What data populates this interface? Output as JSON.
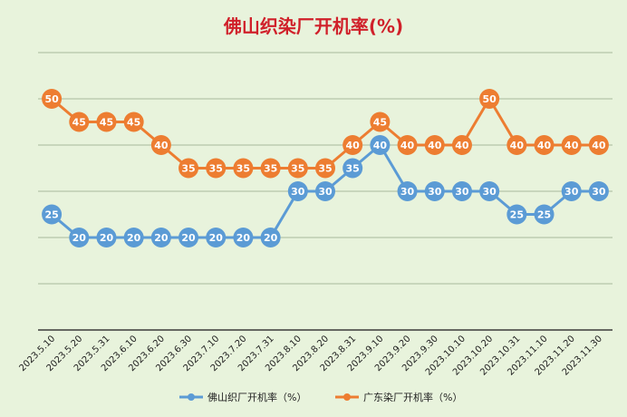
{
  "colors": {
    "background": "#e8f3dc",
    "title": "#d0202a",
    "series_foshan": "#5b9bd5",
    "series_guangdong": "#ed7d31",
    "grid": "#a9b89c",
    "axis": "#3a3a3a"
  },
  "chart_data": {
    "type": "line",
    "title": "佛山织染厂开机率(%)",
    "xlabel": "",
    "ylabel": "",
    "ylim": [
      0,
      60
    ],
    "yticks": [
      0,
      10,
      20,
      30,
      40,
      50,
      60
    ],
    "grid": true,
    "legend_position": "bottom",
    "categories": [
      "2023.5.10",
      "2023.5.20",
      "2023.5.31",
      "2023.6.10",
      "2023.6.20",
      "2023.6.30",
      "2023.7.10",
      "2023.7.20",
      "2023.7.31",
      "2023.8.10",
      "2023.8.20",
      "2023.8.31",
      "2023.9.10",
      "2023.9.20",
      "2023.9.30",
      "2023.10.10",
      "2023.10.20",
      "2023.10.31",
      "2023.11.10",
      "2023.11.20",
      "2023.11.30"
    ],
    "series": [
      {
        "name": "佛山织厂开机率（%）",
        "color": "#5b9bd5",
        "values": [
          25,
          20,
          20,
          20,
          20,
          20,
          20,
          20,
          20,
          30,
          30,
          35,
          40,
          30,
          30,
          30,
          30,
          25,
          25,
          30,
          30
        ]
      },
      {
        "name": "广东染厂开机率（%）",
        "color": "#ed7d31",
        "values": [
          50,
          45,
          45,
          45,
          40,
          35,
          35,
          35,
          35,
          35,
          35,
          40,
          45,
          40,
          40,
          40,
          50,
          40,
          40,
          40,
          40
        ]
      }
    ]
  }
}
